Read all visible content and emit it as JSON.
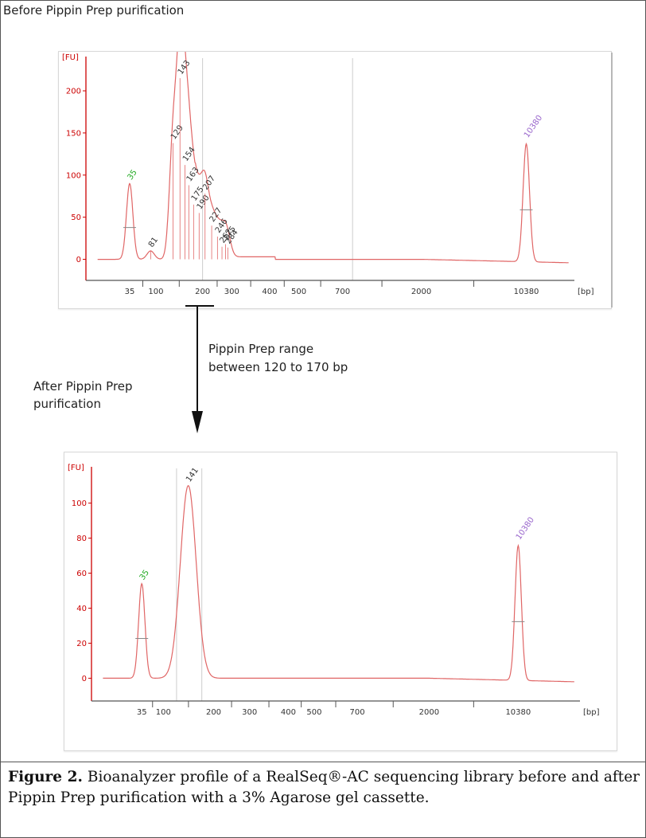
{
  "before_title": "Before Pippin Prep purification",
  "range_text": "Pippin Prep range\nbetween 120 to 170 bp",
  "after_title": "After Pippin Prep\npurification",
  "caption": {
    "label": "Figure 2.",
    "text": " Bioanalyzer profile of a RealSeq®-AC sequencing library before and after Pippin Prep purification with a 3% Agarose gel cassette."
  },
  "colors": {
    "trace": "#e06666",
    "axis": "#cc0000",
    "marker_low": "#22aa22",
    "marker_high": "#9966cc",
    "peak_label": "#333333",
    "gridline": "#cccccc"
  },
  "chart_data": [
    {
      "type": "line",
      "name": "before",
      "ylabel": "[FU]",
      "xlabel": "[bp]",
      "yticks": [
        0,
        50,
        100,
        150,
        200
      ],
      "ylim": [
        -25,
        235
      ],
      "xticks": [
        "35",
        "100",
        "200",
        "300",
        "400",
        "500",
        "700",
        "2000",
        "10380"
      ],
      "x_scale": "ladder",
      "ladder": [
        {
          "bp": 35,
          "pos": 0.0
        },
        {
          "bp": 100,
          "pos": 0.18
        },
        {
          "bp": 200,
          "pos": 0.5
        },
        {
          "bp": 300,
          "pos": 0.7
        },
        {
          "bp": 400,
          "pos": 0.96
        },
        {
          "bp": 500,
          "pos": 1.16
        },
        {
          "bp": 700,
          "pos": 1.46
        },
        {
          "bp": 2000,
          "pos": 2.0
        },
        {
          "bp": 10380,
          "pos": 2.72
        }
      ],
      "xlim_pos": [
        -0.3,
        3.05
      ],
      "gridlines_bp": [
        200,
        800
      ],
      "peaks": [
        {
          "bp": 35,
          "fu": 90,
          "label": "35",
          "kind": "marker_low"
        },
        {
          "bp": 81,
          "fu": 10,
          "label": "81"
        },
        {
          "bp": 129,
          "fu": 138,
          "label": "129"
        },
        {
          "bp": 143,
          "fu": 215,
          "label": "143"
        },
        {
          "bp": 154,
          "fu": 112,
          "label": "154"
        },
        {
          "bp": 163,
          "fu": 88,
          "label": "163"
        },
        {
          "bp": 175,
          "fu": 65,
          "label": "175"
        },
        {
          "bp": 190,
          "fu": 55,
          "label": "190"
        },
        {
          "bp": 207,
          "fu": 78,
          "label": "207"
        },
        {
          "bp": 227,
          "fu": 40,
          "label": "227"
        },
        {
          "bp": 246,
          "fu": 27,
          "label": "246"
        },
        {
          "bp": 262,
          "fu": 15,
          "label": "262"
        },
        {
          "bp": 275,
          "fu": 18,
          "label": "275"
        },
        {
          "bp": 284,
          "fu": 14,
          "label": "284"
        },
        {
          "bp": 10380,
          "fu": 140,
          "label": "10380",
          "kind": "marker_high"
        }
      ]
    },
    {
      "type": "line",
      "name": "after",
      "ylabel": "[FU]",
      "xlabel": "[bp]",
      "yticks": [
        0,
        20,
        40,
        60,
        80,
        100
      ],
      "ylim": [
        -13,
        118
      ],
      "xticks": [
        "35",
        "100",
        "200",
        "300",
        "400",
        "500",
        "700",
        "2000",
        "10380"
      ],
      "x_scale": "ladder",
      "ladder": [
        {
          "bp": 35,
          "pos": 0.0
        },
        {
          "bp": 100,
          "pos": 0.15
        },
        {
          "bp": 200,
          "pos": 0.5
        },
        {
          "bp": 300,
          "pos": 0.75
        },
        {
          "bp": 400,
          "pos": 1.02
        },
        {
          "bp": 500,
          "pos": 1.2
        },
        {
          "bp": 700,
          "pos": 1.5
        },
        {
          "bp": 2000,
          "pos": 2.0
        },
        {
          "bp": 10380,
          "pos": 2.62
        }
      ],
      "xlim_pos": [
        -0.35,
        3.05
      ],
      "gridlines_bp": [
        120,
        170
      ],
      "peaks": [
        {
          "bp": 35,
          "fu": 54,
          "label": "35",
          "kind": "marker_low"
        },
        {
          "bp": 141,
          "fu": 110,
          "label": "141"
        },
        {
          "bp": 10380,
          "fu": 77,
          "label": "10380",
          "kind": "marker_high"
        }
      ]
    }
  ]
}
